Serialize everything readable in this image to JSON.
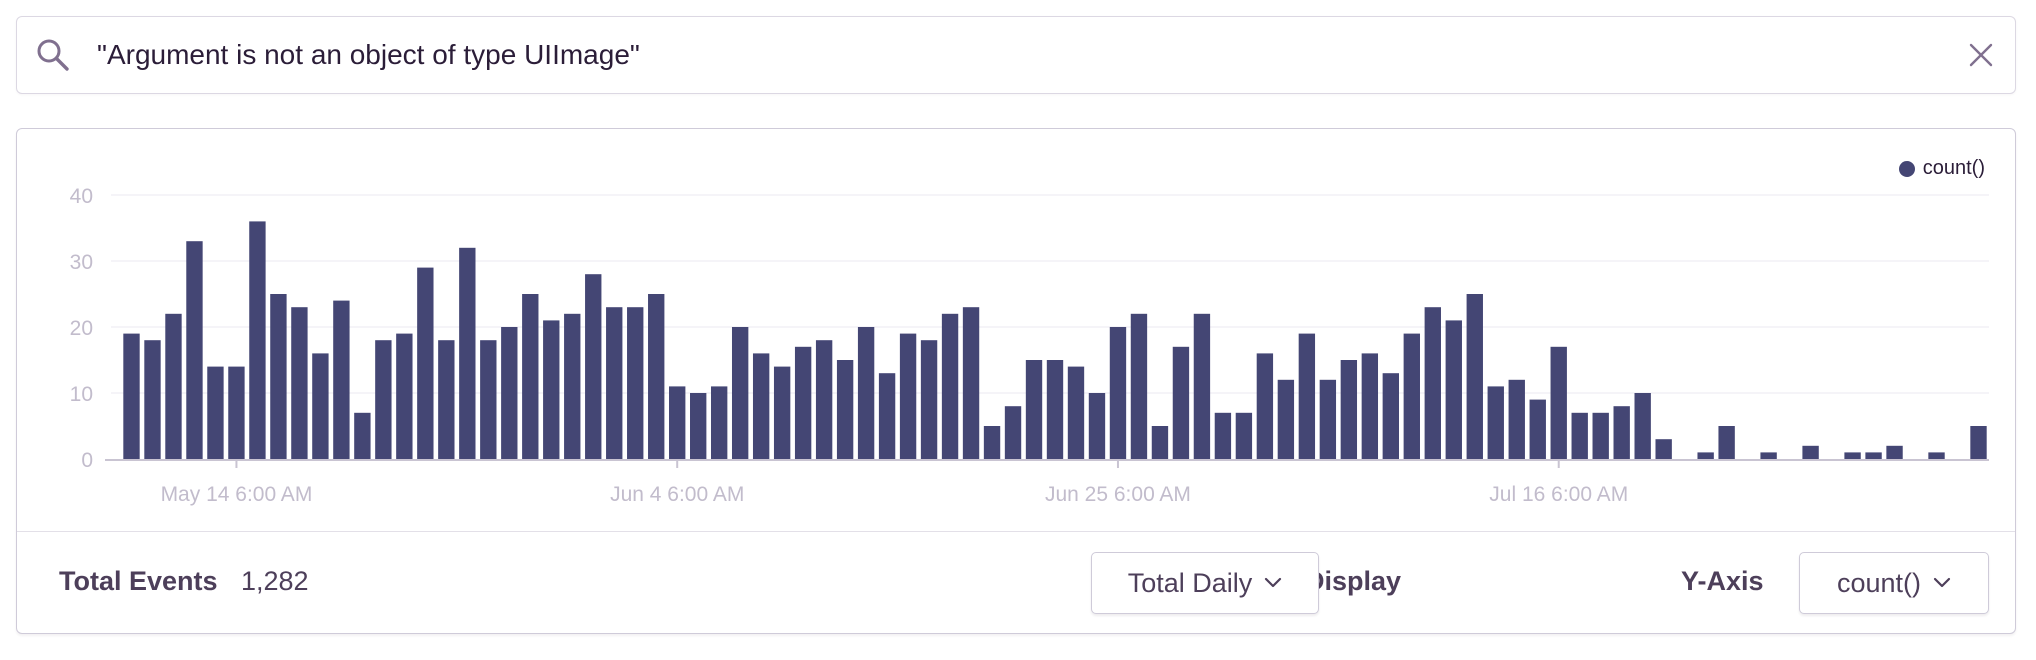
{
  "search": {
    "query": "\"Argument is not an object of type UIImage\""
  },
  "chart_data": {
    "type": "bar",
    "title": "",
    "xlabel": "",
    "ylabel": "",
    "ylim": [
      0,
      40
    ],
    "yticks": [
      0,
      10,
      20,
      30,
      40
    ],
    "grid": true,
    "legend_position": "top-right",
    "x_tick_labels": [
      {
        "label": "May 14 6:00 AM",
        "index": 5
      },
      {
        "label": "Jun 4 6:00 AM",
        "index": 26
      },
      {
        "label": "Jun 25 6:00 AM",
        "index": 47
      },
      {
        "label": "Jul 16 6:00 AM",
        "index": 68
      }
    ],
    "series": [
      {
        "name": "count()",
        "color": "#444674",
        "values": [
          19,
          18,
          22,
          33,
          14,
          14,
          36,
          25,
          23,
          16,
          24,
          7,
          18,
          19,
          29,
          18,
          32,
          18,
          20,
          25,
          21,
          22,
          28,
          23,
          23,
          25,
          11,
          10,
          11,
          20,
          16,
          14,
          17,
          18,
          15,
          20,
          13,
          19,
          18,
          22,
          23,
          5,
          8,
          15,
          15,
          14,
          10,
          20,
          22,
          5,
          17,
          22,
          7,
          7,
          16,
          12,
          19,
          12,
          15,
          16,
          13,
          19,
          23,
          21,
          25,
          11,
          12,
          9,
          17,
          7,
          7,
          8,
          10,
          3,
          0,
          1,
          5,
          0,
          1,
          0,
          2,
          0,
          1,
          1,
          2,
          0,
          1,
          0,
          5
        ]
      }
    ]
  },
  "legend": {
    "label": "count()"
  },
  "footer": {
    "total_label": "Total Events",
    "total_value": "1,282",
    "display_label": "Display",
    "display_value": "Total Daily",
    "yaxis_label": "Y-Axis",
    "yaxis_value": "count()"
  }
}
